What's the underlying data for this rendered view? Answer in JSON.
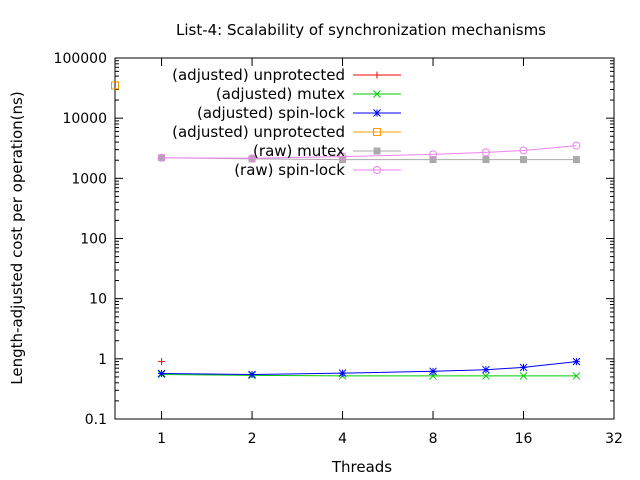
{
  "chart_data": {
    "type": "line",
    "title": "List-4: Scalability of synchronization mechanisms",
    "xlabel": "Threads",
    "ylabel": "Length-adjusted cost per operation(ns)",
    "x_scale": "log2",
    "y_scale": "log10",
    "xlim": [
      0.7,
      32
    ],
    "ylim": [
      0.1,
      100000
    ],
    "x_ticks": [
      "1",
      "2",
      "4",
      "8",
      "16",
      "32"
    ],
    "y_ticks": [
      "0.1",
      "1",
      "10",
      "100",
      "1000",
      "10000",
      "100000"
    ],
    "legend_position": "top-left",
    "grid": false,
    "series": [
      {
        "name": "(adjusted) unprotected",
        "color": "#ff0000",
        "marker": "plus",
        "x": [
          1
        ],
        "y": [
          0.9
        ]
      },
      {
        "name": "(adjusted) mutex",
        "color": "#00cc00",
        "marker": "cross",
        "x": [
          1,
          2,
          4,
          8,
          12,
          16,
          24
        ],
        "y": [
          0.55,
          0.53,
          0.52,
          0.52,
          0.52,
          0.52,
          0.52
        ]
      },
      {
        "name": "(adjusted) spin-lock",
        "color": "#0000ff",
        "marker": "star",
        "x": [
          1,
          2,
          4,
          8,
          12,
          16,
          24
        ],
        "y": [
          0.57,
          0.55,
          0.58,
          0.62,
          0.66,
          0.72,
          0.9
        ]
      },
      {
        "name": "(adjusted) unprotected",
        "color": "#ff9900",
        "marker": "square",
        "x": [
          0.7
        ],
        "y": [
          35000
        ]
      },
      {
        "name": "(raw) mutex",
        "color": "#aaaaaa",
        "marker": "filled-square",
        "x": [
          1,
          2,
          4,
          8,
          12,
          16,
          24
        ],
        "y": [
          2200,
          2100,
          2050,
          2050,
          2050,
          2050,
          2050
        ]
      },
      {
        "name": "(raw) spin-lock",
        "color": "#ee82ee",
        "marker": "circle",
        "x": [
          1,
          2,
          4,
          8,
          12,
          16,
          24
        ],
        "y": [
          2200,
          2150,
          2300,
          2500,
          2700,
          2900,
          3500
        ]
      }
    ]
  }
}
